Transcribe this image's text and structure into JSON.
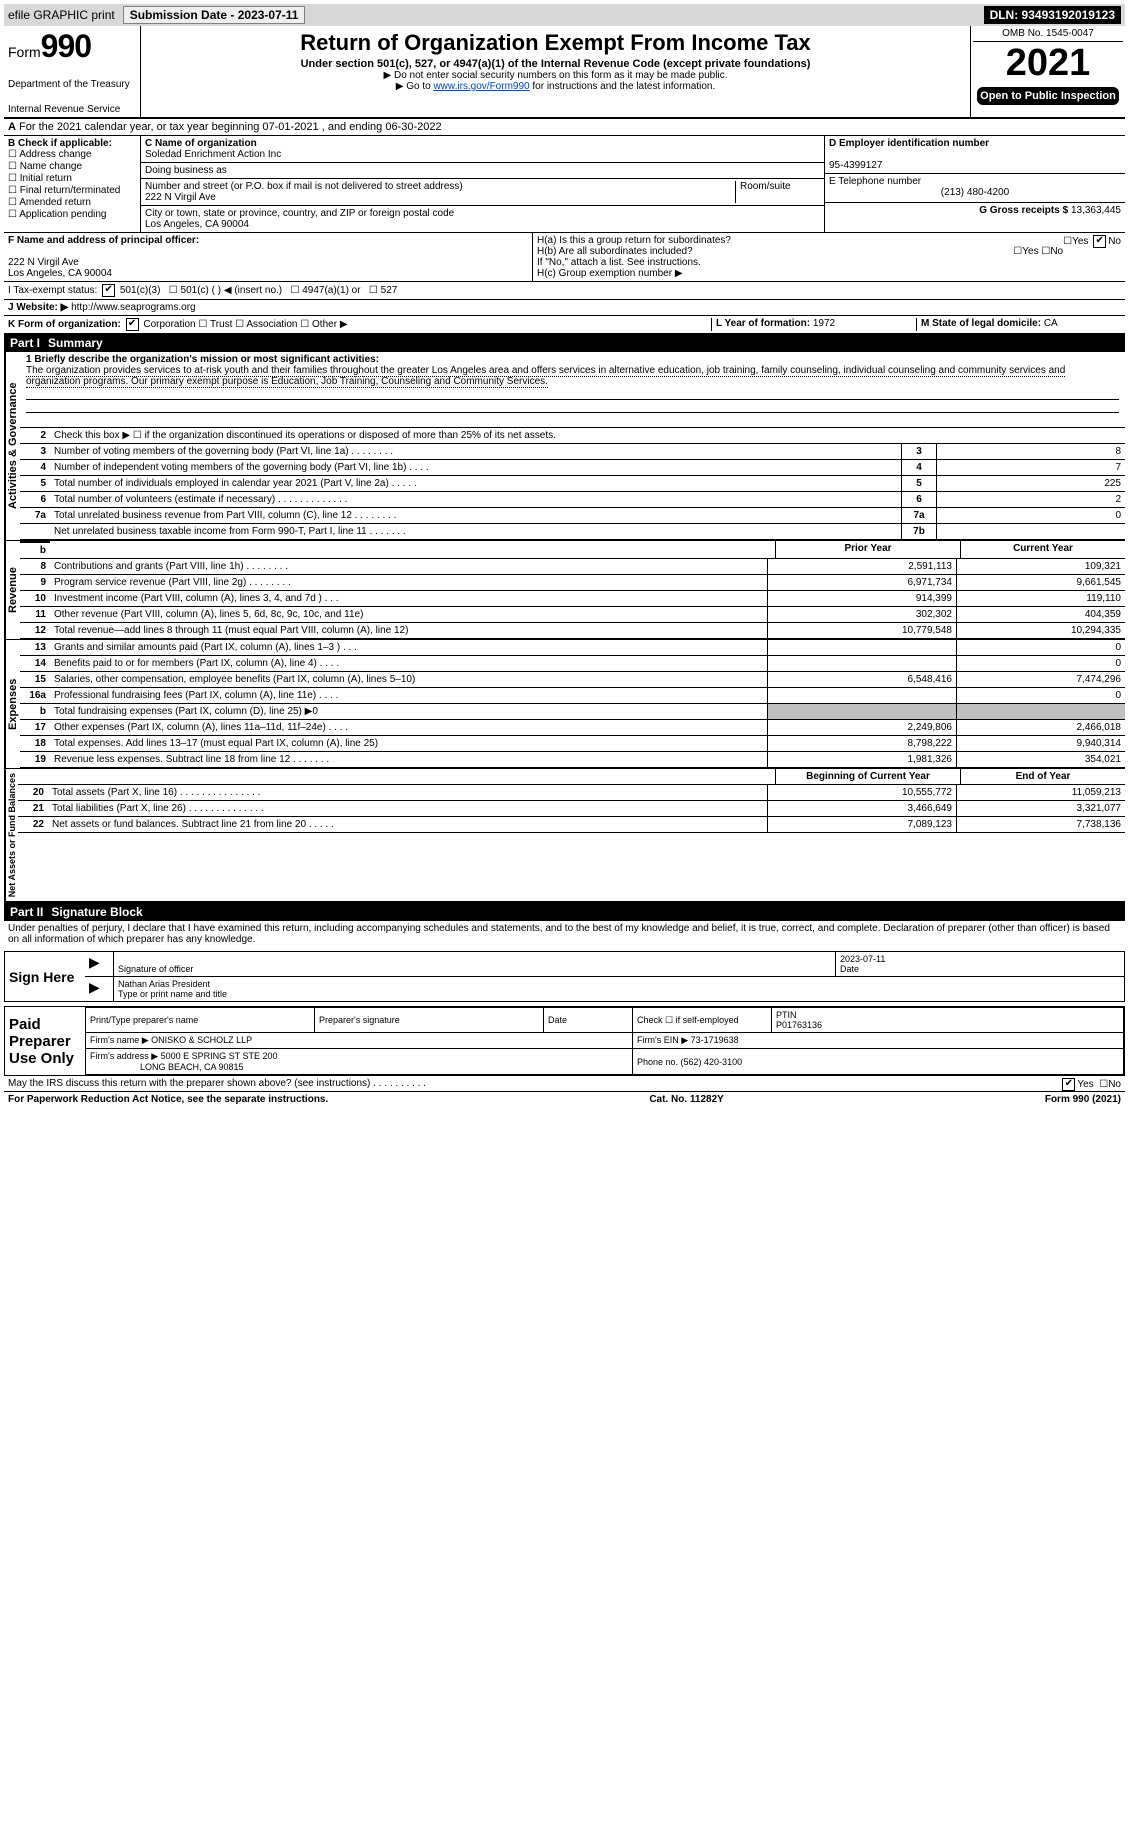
{
  "top": {
    "efile": "efile GRAPHIC print",
    "sub_label": "Submission Date - 2023-07-11",
    "dln": "DLN: 93493192019123"
  },
  "header": {
    "form_prefix": "Form",
    "form_num": "990",
    "title": "Return of Organization Exempt From Income Tax",
    "sub": "Under section 501(c), 527, or 4947(a)(1) of the Internal Revenue Code (except private foundations)",
    "note1": "▶ Do not enter social security numbers on this form as it may be made public.",
    "note2_pre": "▶ Go to ",
    "note2_link": "www.irs.gov/Form990",
    "note2_post": " for instructions and the latest information.",
    "dept": "Department of the Treasury",
    "irs": "Internal Revenue Service",
    "omb": "OMB No. 1545-0047",
    "year": "2021",
    "open": "Open to Public Inspection"
  },
  "A": "For the 2021 calendar year, or tax year beginning 07-01-2021    , and ending 06-30-2022",
  "B": {
    "label": "B Check if applicable:",
    "items": [
      "Address change",
      "Name change",
      "Initial return",
      "Final return/terminated",
      "Amended return",
      "Application pending"
    ]
  },
  "C": {
    "label": "C Name of organization",
    "name": "Soledad Enrichment Action Inc",
    "dba_label": "Doing business as",
    "street_label": "Number and street (or P.O. box if mail is not delivered to street address)",
    "room_label": "Room/suite",
    "street": "222 N Virgil Ave",
    "city_label": "City or town, state or province, country, and ZIP or foreign postal code",
    "city": "Los Angeles, CA  90004"
  },
  "D": {
    "label": "D Employer identification number",
    "val": "95-4399127"
  },
  "E": {
    "label": "E Telephone number",
    "val": "(213) 480-4200"
  },
  "G": {
    "label": "G Gross receipts $",
    "val": "13,363,445"
  },
  "F": {
    "label": "F  Name and address of principal officer:",
    "line1": "222 N Virgil Ave",
    "line2": "Los Angeles, CA  90004"
  },
  "H": {
    "a": "H(a)  Is this a group return for subordinates?",
    "a_yes": "Yes",
    "a_no": "No",
    "b": "H(b)  Are all subordinates included?",
    "b_note": "If \"No,\" attach a list. See instructions.",
    "c": "H(c)  Group exemption number ▶"
  },
  "I": {
    "label": "I   Tax-exempt status:",
    "o1": "501(c)(3)",
    "o2": "501(c) (   ) ◀ (insert no.)",
    "o3": "4947(a)(1) or",
    "o4": "527"
  },
  "J": {
    "label": "J   Website: ▶",
    "val": "http://www.seaprograms.org"
  },
  "K": {
    "label": "K Form of organization:",
    "o1": "Corporation",
    "o2": "Trust",
    "o3": "Association",
    "o4": "Other ▶"
  },
  "L": {
    "label": "L Year of formation:",
    "val": "1972"
  },
  "M": {
    "label": "M State of legal domicile:",
    "val": "CA"
  },
  "part1": "Part I",
  "part1_title": "Summary",
  "mission": {
    "label": "1  Briefly describe the organization's mission or most significant activities:",
    "text": "The organization provides services to at-risk youth and their families throughout the greater Los Angeles area and offers services in alternative education, job training, family counseling, individual counseling and community services and organization programs. Our primary exempt purpose is Education, Job Training, Counseling and Community Services."
  },
  "gov": {
    "l2": "Check this box ▶ ☐  if the organization discontinued its operations or disposed of more than 25% of its net assets.",
    "rows": [
      {
        "n": "3",
        "lbl": "Number of voting members of the governing body (Part VI, line 1a)   .    .    .    .    .    .    .    .",
        "box": "3",
        "val": "8"
      },
      {
        "n": "4",
        "lbl": "Number of independent voting members of the governing body (Part VI, line 1b)   .    .    .    .",
        "box": "4",
        "val": "7"
      },
      {
        "n": "5",
        "lbl": "Total number of individuals employed in calendar year 2021 (Part V, line 2a)   .    .    .    .    .",
        "box": "5",
        "val": "225"
      },
      {
        "n": "6",
        "lbl": "Total number of volunteers (estimate if necessary)   .    .    .    .    .    .    .    .    .    .    .    .    .",
        "box": "6",
        "val": "2"
      },
      {
        "n": "7a",
        "lbl": "Total unrelated business revenue from Part VIII, column (C), line 12   .    .    .    .    .    .    .    .",
        "box": "7a",
        "val": "0"
      },
      {
        "n": "",
        "lbl": "Net unrelated business taxable income from Form 990-T, Part I, line 11   .    .    .    .    .    .    .",
        "box": "7b",
        "val": ""
      }
    ]
  },
  "yearhdr": {
    "prior": "Prior Year",
    "current": "Current Year"
  },
  "rev": [
    {
      "n": "8",
      "lbl": "Contributions and grants (Part VIII, line 1h)   .    .    .    .    .    .    .    .",
      "p": "2,591,113",
      "c": "109,321"
    },
    {
      "n": "9",
      "lbl": "Program service revenue (Part VIII, line 2g)   .    .    .    .    .    .    .    .",
      "p": "6,971,734",
      "c": "9,661,545"
    },
    {
      "n": "10",
      "lbl": "Investment income (Part VIII, column (A), lines 3, 4, and 7d )   .    .    .",
      "p": "914,399",
      "c": "119,110"
    },
    {
      "n": "11",
      "lbl": "Other revenue (Part VIII, column (A), lines 5, 6d, 8c, 9c, 10c, and 11e)",
      "p": "302,302",
      "c": "404,359"
    },
    {
      "n": "12",
      "lbl": "Total revenue—add lines 8 through 11 (must equal Part VIII, column (A), line 12)",
      "p": "10,779,548",
      "c": "10,294,335"
    }
  ],
  "exp": [
    {
      "n": "13",
      "lbl": "Grants and similar amounts paid (Part IX, column (A), lines 1–3 )   .    .    .",
      "p": "",
      "c": "0"
    },
    {
      "n": "14",
      "lbl": "Benefits paid to or for members (Part IX, column (A), line 4)   .    .    .    .",
      "p": "",
      "c": "0"
    },
    {
      "n": "15",
      "lbl": "Salaries, other compensation, employee benefits (Part IX, column (A), lines 5–10)",
      "p": "6,548,416",
      "c": "7,474,296"
    },
    {
      "n": "16a",
      "lbl": "Professional fundraising fees (Part IX, column (A), line 11e)   .    .    .    .",
      "p": "",
      "c": "0"
    },
    {
      "n": "b",
      "lbl": "Total fundraising expenses (Part IX, column (D), line 25) ▶0",
      "p": "shade",
      "c": "shade"
    },
    {
      "n": "17",
      "lbl": "Other expenses (Part IX, column (A), lines 11a–11d, 11f–24e)   .    .    .    .",
      "p": "2,249,806",
      "c": "2,466,018"
    },
    {
      "n": "18",
      "lbl": "Total expenses. Add lines 13–17 (must equal Part IX, column (A), line 25)",
      "p": "8,798,222",
      "c": "9,940,314"
    },
    {
      "n": "19",
      "lbl": "Revenue less expenses. Subtract line 18 from line 12   .    .    .    .    .    .    .",
      "p": "1,981,326",
      "c": "354,021"
    }
  ],
  "nethdr": {
    "b": "Beginning of Current Year",
    "e": "End of Year"
  },
  "net": [
    {
      "n": "20",
      "lbl": "Total assets (Part X, line 16)   .    .    .    .    .    .    .    .    .    .    .    .    .    .    .",
      "p": "10,555,772",
      "c": "11,059,213"
    },
    {
      "n": "21",
      "lbl": "Total liabilities (Part X, line 26)   .    .    .    .    .    .    .    .    .    .    .    .    .    .",
      "p": "3,466,649",
      "c": "3,321,077"
    },
    {
      "n": "22",
      "lbl": "Net assets or fund balances. Subtract line 21 from line 20   .    .    .    .    .",
      "p": "7,089,123",
      "c": "7,738,136"
    }
  ],
  "part2": "Part II",
  "part2_title": "Signature Block",
  "pen": "Under penalties of perjury, I declare that I have examined this return, including accompanying schedules and statements, and to the best of my knowledge and belief, it is true, correct, and complete. Declaration of preparer (other than officer) is based on all information of which preparer has any knowledge.",
  "sign": {
    "here": "Sign Here",
    "sig": "Signature of officer",
    "date": "Date",
    "date_val": "2023-07-11",
    "name": "Nathan Arias  President",
    "type": "Type or print name and title"
  },
  "paid": {
    "label": "Paid Preparer Use Only",
    "pname": "Print/Type preparer's name",
    "psig": "Preparer's signature",
    "pdate": "Date",
    "pcheck": "Check ☐ if self-employed",
    "ptin": "PTIN",
    "ptin_val": "P01763136",
    "firm": "Firm's name    ▶ ONISKO & SCHOLZ LLP",
    "ein": "Firm's EIN ▶ 73-1719638",
    "addr": "Firm's address ▶ 5000 E SPRING ST STE 200",
    "addr2": "LONG BEACH, CA  90815",
    "phone": "Phone no. (562) 420-3100"
  },
  "may": "May the IRS discuss this return with the preparer shown above? (see instructions)   .    .    .    .    .    .    .    .    .    .",
  "may_yes": "Yes",
  "may_no": "No",
  "footer": {
    "l": "For Paperwork Reduction Act Notice, see the separate instructions.",
    "m": "Cat. No. 11282Y",
    "r": "Form 990 (2021)"
  },
  "vtabs": {
    "gov": "Activities & Governance",
    "rev": "Revenue",
    "exp": "Expenses",
    "net": "Net Assets or Fund Balances"
  }
}
